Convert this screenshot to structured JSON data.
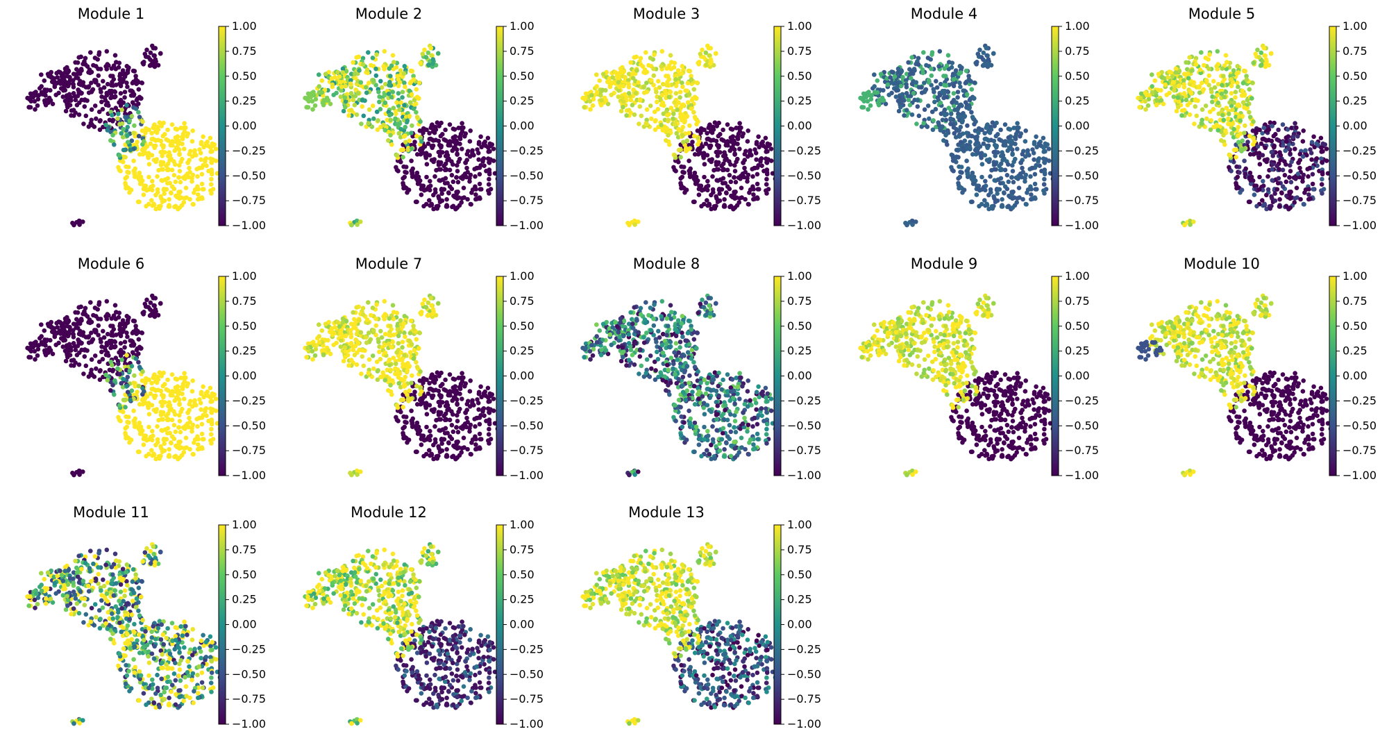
{
  "figure": {
    "panels": [
      {
        "title": "Module 1"
      },
      {
        "title": "Module 2"
      },
      {
        "title": "Module 3"
      },
      {
        "title": "Module 4"
      },
      {
        "title": "Module 5"
      },
      {
        "title": "Module 6"
      },
      {
        "title": "Module 7"
      },
      {
        "title": "Module 8"
      },
      {
        "title": "Module 9"
      },
      {
        "title": "Module 10"
      },
      {
        "title": "Module 11"
      },
      {
        "title": "Module 12"
      },
      {
        "title": "Module 13"
      }
    ]
  },
  "colorbar": {
    "colormap": "viridis",
    "tick_labels": [
      "1.00",
      "0.75",
      "0.50",
      "0.25",
      "0.00",
      "−0.25",
      "−0.50",
      "−0.75",
      "−1.00"
    ],
    "colors": [
      "#440154",
      "#3b528b",
      "#21918c",
      "#5ec962",
      "#fde725"
    ]
  },
  "chart_data": [
    {
      "type": "scatter",
      "title": "Module 1",
      "xlabel": "",
      "ylabel": "",
      "color_range": [
        -1.0,
        1.0
      ],
      "colorbar_ticks": [
        1.0,
        0.75,
        0.5,
        0.25,
        0.0,
        -0.25,
        -0.5,
        -0.75,
        -1.0
      ],
      "axes_visible": false,
      "grid": false,
      "pattern": "right lobe high (yellow), left lobe low (purple)"
    },
    {
      "type": "scatter",
      "title": "Module 2",
      "xlabel": "",
      "ylabel": "",
      "color_range": [
        -1.0,
        1.0
      ],
      "colorbar_ticks": [
        1.0,
        0.75,
        0.5,
        0.25,
        0.0,
        -0.25,
        -0.5,
        -0.75,
        -1.0
      ],
      "axes_visible": false,
      "grid": false,
      "pattern": "upper-left high, right lobe low"
    },
    {
      "type": "scatter",
      "title": "Module 3",
      "xlabel": "",
      "ylabel": "",
      "color_range": [
        -1.0,
        1.0
      ],
      "colorbar_ticks": [
        1.0,
        0.75,
        0.5,
        0.25,
        0.0,
        -0.25,
        -0.5,
        -0.75,
        -1.0
      ],
      "axes_visible": false,
      "grid": false,
      "pattern": "left lobe high, right lobe low"
    },
    {
      "type": "scatter",
      "title": "Module 4",
      "xlabel": "",
      "ylabel": "",
      "color_range": [
        -1.0,
        1.0
      ],
      "colorbar_ticks": [
        1.0,
        0.75,
        0.5,
        0.25,
        0.0,
        -0.25,
        -0.5,
        -0.75,
        -1.0
      ],
      "axes_visible": false,
      "grid": false,
      "pattern": "mostly near -0.4 (blue), tip near 0.5"
    },
    {
      "type": "scatter",
      "title": "Module 5",
      "xlabel": "",
      "ylabel": "",
      "color_range": [
        -1.0,
        1.0
      ],
      "colorbar_ticks": [
        1.0,
        0.75,
        0.5,
        0.25,
        0.0,
        -0.25,
        -0.5,
        -0.75,
        -1.0
      ],
      "axes_visible": false,
      "grid": false,
      "pattern": "left lobe high, right lobe low"
    },
    {
      "type": "scatter",
      "title": "Module 6",
      "xlabel": "",
      "ylabel": "",
      "color_range": [
        -1.0,
        1.0
      ],
      "colorbar_ticks": [
        1.0,
        0.75,
        0.5,
        0.25,
        0.0,
        -0.25,
        -0.5,
        -0.75,
        -1.0
      ],
      "axes_visible": false,
      "grid": false,
      "pattern": "lower-right high, upper-left low"
    },
    {
      "type": "scatter",
      "title": "Module 7",
      "xlabel": "",
      "ylabel": "",
      "color_range": [
        -1.0,
        1.0
      ],
      "colorbar_ticks": [
        1.0,
        0.75,
        0.5,
        0.25,
        0.0,
        -0.25,
        -0.5,
        -0.75,
        -1.0
      ],
      "axes_visible": false,
      "grid": false,
      "pattern": "left lobe high, right lobe low"
    },
    {
      "type": "scatter",
      "title": "Module 8",
      "xlabel": "",
      "ylabel": "",
      "color_range": [
        -1.0,
        1.0
      ],
      "colorbar_ticks": [
        1.0,
        0.75,
        0.5,
        0.25,
        0.0,
        -0.25,
        -0.5,
        -0.75,
        -1.0
      ],
      "axes_visible": false,
      "grid": false,
      "pattern": "mixed, mid values"
    },
    {
      "type": "scatter",
      "title": "Module 9",
      "xlabel": "",
      "ylabel": "",
      "color_range": [
        -1.0,
        1.0
      ],
      "colorbar_ticks": [
        1.0,
        0.75,
        0.5,
        0.25,
        0.0,
        -0.25,
        -0.5,
        -0.75,
        -1.0
      ],
      "axes_visible": false,
      "grid": false,
      "pattern": "left lobe high, right lobe low"
    },
    {
      "type": "scatter",
      "title": "Module 10",
      "xlabel": "",
      "ylabel": "",
      "color_range": [
        -1.0,
        1.0
      ],
      "colorbar_ticks": [
        1.0,
        0.75,
        0.5,
        0.25,
        0.0,
        -0.25,
        -0.5,
        -0.75,
        -1.0
      ],
      "axes_visible": false,
      "grid": false,
      "pattern": "upper-middle high, right lobe low"
    },
    {
      "type": "scatter",
      "title": "Module 11",
      "xlabel": "",
      "ylabel": "",
      "color_range": [
        -1.0,
        1.0
      ],
      "colorbar_ticks": [
        1.0,
        0.75,
        0.5,
        0.25,
        0.0,
        -0.25,
        -0.5,
        -0.75,
        -1.0
      ],
      "axes_visible": false,
      "grid": false,
      "pattern": "mixed, many high"
    },
    {
      "type": "scatter",
      "title": "Module 12",
      "xlabel": "",
      "ylabel": "",
      "color_range": [
        -1.0,
        1.0
      ],
      "colorbar_ticks": [
        1.0,
        0.75,
        0.5,
        0.25,
        0.0,
        -0.25,
        -0.5,
        -0.75,
        -1.0
      ],
      "axes_visible": false,
      "grid": false,
      "pattern": "upper-left high, lower-right low"
    },
    {
      "type": "scatter",
      "title": "Module 13",
      "xlabel": "",
      "ylabel": "",
      "color_range": [
        -1.0,
        1.0
      ],
      "colorbar_ticks": [
        1.0,
        0.75,
        0.5,
        0.25,
        0.0,
        -0.25,
        -0.5,
        -0.75,
        -1.0
      ],
      "axes_visible": false,
      "grid": false,
      "pattern": "upper-left high, mixed lower-right"
    }
  ]
}
